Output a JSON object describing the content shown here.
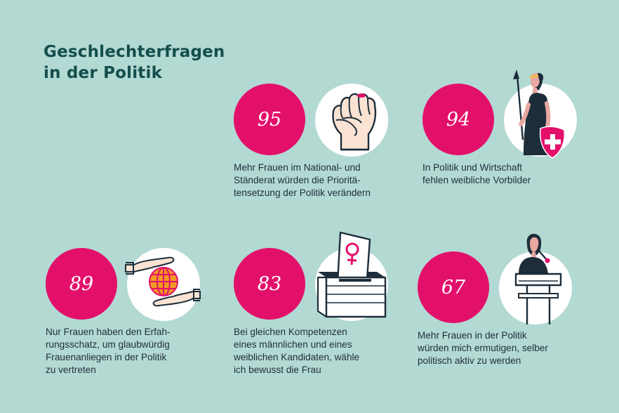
{
  "title": {
    "lines": [
      "Geschlechterfragen",
      "in der Politik"
    ]
  },
  "colors": {
    "background": "#b3d9d3",
    "accent": "#e3106b",
    "title": "#144e4c",
    "text": "#1d2d3a",
    "icon_bg": "#ffffff"
  },
  "stats": [
    {
      "value": "95",
      "icon": "raised-fist-icon",
      "lines": [
        "Mehr Frauen im National- und",
        "Ständerat würden die Prioritä-",
        "tensetzung der Politik verändern"
      ]
    },
    {
      "value": "94",
      "icon": "helvetia-icon",
      "lines": [
        "In Politik und Wirtschaft",
        "fehlen weibliche Vorbilder"
      ]
    },
    {
      "value": "89",
      "icon": "hands-globe-icon",
      "lines": [
        "Nur Frauen haben den Erfah-",
        "rungsschatz, um glaubwürdig",
        "Frauenanliegen in der Politik",
        "zu vertreten"
      ]
    },
    {
      "value": "83",
      "icon": "ballot-box-icon",
      "lines": [
        "Bei gleichen Kompetenzen",
        "eines männlichen und eines",
        "weiblichen Kandidaten, wähle",
        "ich bewusst die Frau"
      ]
    },
    {
      "value": "67",
      "icon": "speaker-podium-icon",
      "lines": [
        "Mehr Frauen in der Politik",
        "würden mich ermutigen, selber",
        "politisch aktiv zu werden"
      ]
    }
  ]
}
